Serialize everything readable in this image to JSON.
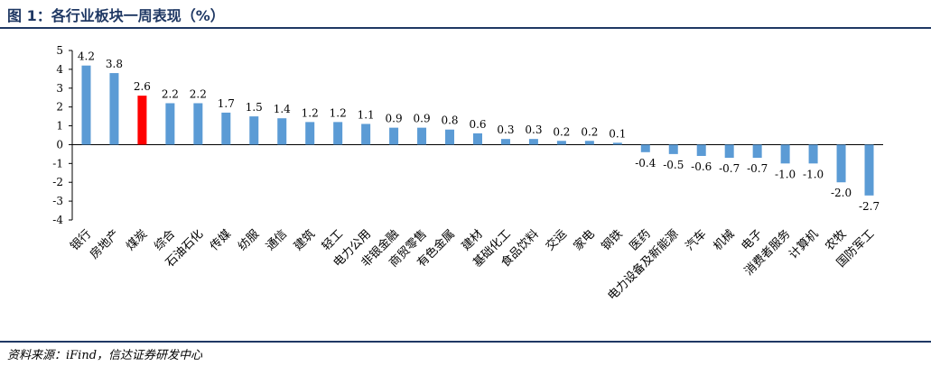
{
  "header": {
    "title": "图 1：各行业板块一周表现（%）"
  },
  "footer": {
    "source": "资料来源：iFind，信达证券研发中心"
  },
  "colors": {
    "bar": "#5b9bd5",
    "highlight": "#ff0000",
    "rule": "#1f3864"
  },
  "chart_data": {
    "type": "bar",
    "title": "",
    "xlabel": "",
    "ylabel": "",
    "ylim": [
      -4,
      5
    ],
    "yticks": [
      5,
      4,
      3,
      2,
      1,
      0,
      -1,
      -2,
      -3,
      -4
    ],
    "grid": false,
    "legend": "none",
    "highlight_category": "煤炭",
    "categories": [
      "银行",
      "房地产",
      "煤炭",
      "综合",
      "石油石化",
      "传媒",
      "纺服",
      "通信",
      "建筑",
      "轻工",
      "电力公用",
      "非银金融",
      "商贸零售",
      "有色金属",
      "建材",
      "基础化工",
      "食品饮料",
      "交运",
      "家电",
      "钢铁",
      "医药",
      "电力设备及新能源",
      "汽车",
      "机械",
      "电子",
      "消费者服务",
      "计算机",
      "农牧",
      "国防军工"
    ],
    "values": [
      4.2,
      3.8,
      2.6,
      2.2,
      2.2,
      1.7,
      1.5,
      1.4,
      1.2,
      1.2,
      1.1,
      0.9,
      0.9,
      0.8,
      0.6,
      0.3,
      0.3,
      0.2,
      0.2,
      0.1,
      -0.4,
      -0.5,
      -0.6,
      -0.7,
      -0.7,
      -1.0,
      -1.0,
      -2.0,
      -2.7
    ],
    "value_labels": [
      "4.2",
      "3.8",
      "2.6",
      "2.2",
      "2.2",
      "1.7",
      "1.5",
      "1.4",
      "1.2",
      "1.2",
      "1.1",
      "0.9",
      "0.9",
      "0.8",
      "0.6",
      "0.3",
      "0.3",
      "0.2",
      "0.2",
      "0.1",
      "-0.4",
      "-0.5",
      "-0.6",
      "-0.7",
      "-0.7",
      "-1.0",
      "-1.0",
      "-2.0",
      "-2.7"
    ]
  }
}
